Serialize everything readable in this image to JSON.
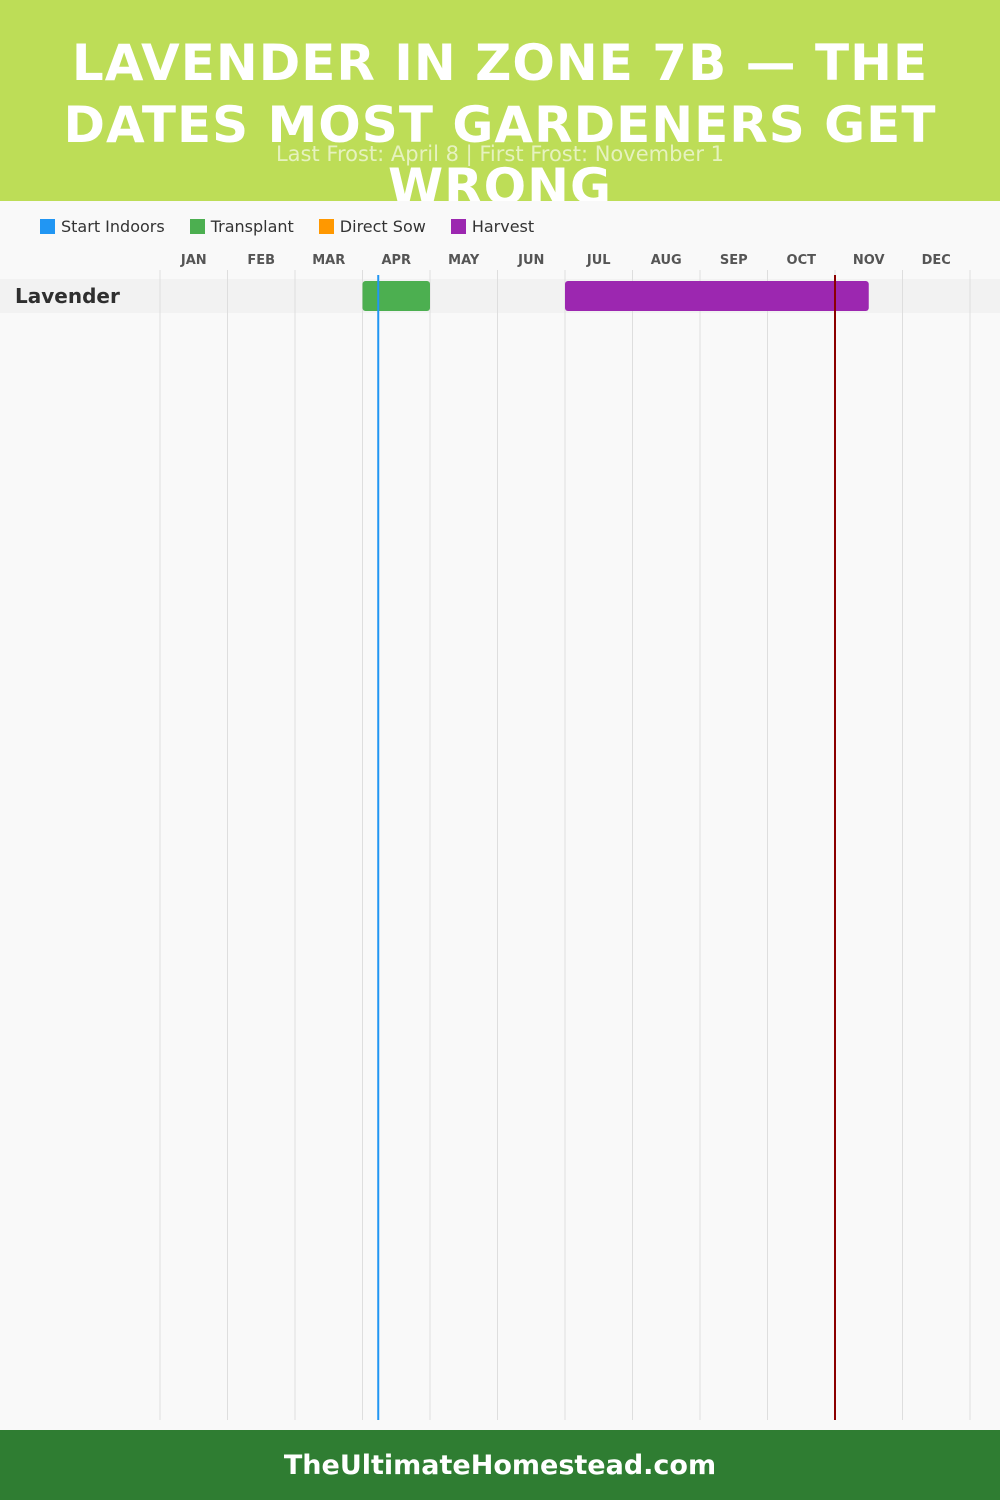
{
  "header": {
    "title": "LAVENDER IN ZONE 7B — THE DATES MOST GARDENERS GET WRONG",
    "subtitle": "Last Frost: April 8 | First Frost: November 1"
  },
  "legend": [
    {
      "label": "Start Indoors",
      "color": "#2196f3"
    },
    {
      "label": "Transplant",
      "color": "#4caf50"
    },
    {
      "label": "Direct Sow",
      "color": "#ff9800"
    },
    {
      "label": "Harvest",
      "color": "#9c27b0"
    }
  ],
  "chart_data": {
    "type": "gantt",
    "months": [
      "JAN",
      "FEB",
      "MAR",
      "APR",
      "MAY",
      "JUN",
      "JUL",
      "AUG",
      "SEP",
      "OCT",
      "NOV",
      "DEC"
    ],
    "crops": [
      {
        "name": "Lavender",
        "phases": [
          {
            "phase": "Transplant",
            "start_month": 4,
            "start_day": 1,
            "end_month": 4,
            "end_day": 30,
            "color": "#4caf50"
          },
          {
            "phase": "Harvest",
            "start_month": 7,
            "start_day": 1,
            "end_month": 11,
            "end_day": 15,
            "color": "#9c27b0"
          }
        ]
      }
    ],
    "frost_markers": [
      {
        "label": "Last Frost",
        "month": 4,
        "day": 8,
        "color": "#2196f3"
      },
      {
        "label": "First Frost",
        "month": 11,
        "day": 1,
        "color": "#8b0000"
      }
    ],
    "grid": true
  },
  "footer": {
    "site": "TheUltimateHomestead.com"
  }
}
